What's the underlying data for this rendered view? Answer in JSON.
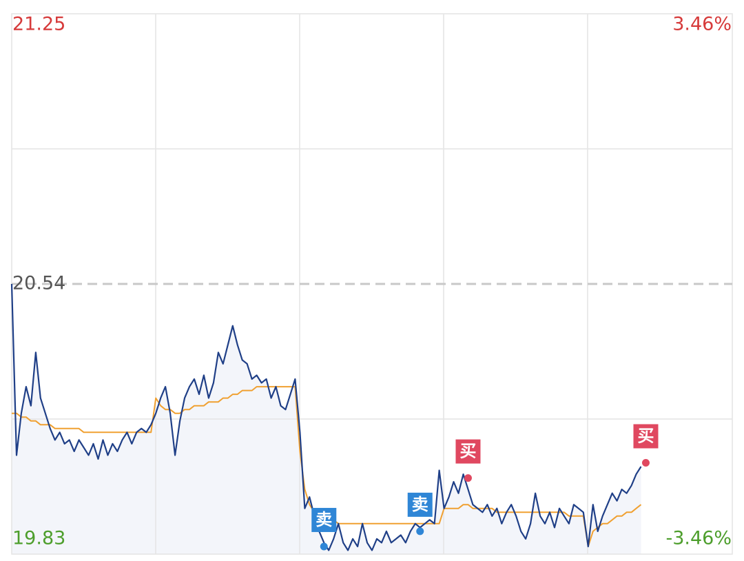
{
  "chart_data": {
    "type": "line",
    "xlim": [
      0,
      150
    ],
    "ylim": [
      19.83,
      21.25
    ],
    "yticks": [
      19.83,
      20.54,
      21.25
    ],
    "y2lim": [
      -3.46,
      3.46
    ],
    "y2ticks": [
      {
        "value": -3.46,
        "label": "-3.46%"
      },
      {
        "value": 3.46,
        "label": "3.46%"
      }
    ],
    "reference_line": 20.54,
    "grid": true,
    "up_color": "#d63a3a",
    "down_color": "#4d9e2c",
    "flat_color": "#555555",
    "series": [
      {
        "color": "#1f3f87",
        "fill": "#f3f5fa",
        "values": [
          20.54,
          20.09,
          20.2,
          20.27,
          20.22,
          20.36,
          20.24,
          20.2,
          20.16,
          20.13,
          20.15,
          20.12,
          20.13,
          20.1,
          20.13,
          20.11,
          20.09,
          20.12,
          20.08,
          20.13,
          20.09,
          20.12,
          20.1,
          20.13,
          20.15,
          20.12,
          20.15,
          20.16,
          20.15,
          20.17,
          20.2,
          20.24,
          20.27,
          20.2,
          20.09,
          20.18,
          20.24,
          20.27,
          20.29,
          20.25,
          20.3,
          20.24,
          20.28,
          20.36,
          20.33,
          20.38,
          20.43,
          20.38,
          20.34,
          20.33,
          20.29,
          20.3,
          20.28,
          20.29,
          20.24,
          20.27,
          20.22,
          20.21,
          20.25,
          20.29,
          20.15,
          19.95,
          19.98,
          19.93,
          19.89,
          19.86,
          19.84,
          19.87,
          19.91,
          19.86,
          19.84,
          19.87,
          19.85,
          19.91,
          19.86,
          19.84,
          19.87,
          19.86,
          19.89,
          19.86,
          19.87,
          19.88,
          19.86,
          19.89,
          19.91,
          19.9,
          19.91,
          19.92,
          19.91,
          20.05,
          19.95,
          19.98,
          20.02,
          19.99,
          20.04,
          20.0,
          19.96,
          19.95,
          19.94,
          19.96,
          19.93,
          19.95,
          19.91,
          19.94,
          19.96,
          19.93,
          19.89,
          19.87,
          19.91,
          19.99,
          19.93,
          19.91,
          19.94,
          19.9,
          19.95,
          19.93,
          19.91,
          19.96,
          19.95,
          19.94,
          19.85,
          19.96,
          19.89,
          19.93,
          19.96,
          19.99,
          19.97,
          20.0,
          19.99,
          20.01,
          20.04,
          20.06
        ]
      },
      {
        "color": "#f0a030",
        "values": [
          20.2,
          20.2,
          20.19,
          20.19,
          20.18,
          20.18,
          20.17,
          20.17,
          20.17,
          20.16,
          20.16,
          20.16,
          20.16,
          20.16,
          20.16,
          20.15,
          20.15,
          20.15,
          20.15,
          20.15,
          20.15,
          20.15,
          20.15,
          20.15,
          20.15,
          20.15,
          20.15,
          20.15,
          20.15,
          20.15,
          20.24,
          20.22,
          20.21,
          20.21,
          20.2,
          20.2,
          20.21,
          20.21,
          20.22,
          20.22,
          20.22,
          20.23,
          20.23,
          20.23,
          20.24,
          20.24,
          20.25,
          20.25,
          20.26,
          20.26,
          20.26,
          20.27,
          20.27,
          20.27,
          20.27,
          20.27,
          20.27,
          20.27,
          20.27,
          20.27,
          20.1,
          20.0,
          19.96,
          19.94,
          19.93,
          19.93,
          19.92,
          19.92,
          19.91,
          19.91,
          19.91,
          19.91,
          19.91,
          19.91,
          19.91,
          19.91,
          19.91,
          19.91,
          19.91,
          19.91,
          19.91,
          19.91,
          19.91,
          19.91,
          19.91,
          19.91,
          19.91,
          19.91,
          19.91,
          19.91,
          19.95,
          19.95,
          19.95,
          19.95,
          19.96,
          19.96,
          19.95,
          19.95,
          19.95,
          19.95,
          19.95,
          19.94,
          19.94,
          19.94,
          19.94,
          19.94,
          19.94,
          19.94,
          19.94,
          19.94,
          19.94,
          19.94,
          19.94,
          19.94,
          19.94,
          19.94,
          19.93,
          19.93,
          19.93,
          19.93,
          19.85,
          19.89,
          19.9,
          19.91,
          19.91,
          19.92,
          19.93,
          19.93,
          19.94,
          19.94,
          19.95,
          19.96
        ]
      }
    ],
    "markers": [
      {
        "label": "卖",
        "x": 65,
        "value": 19.85,
        "color": "#2f86d6"
      },
      {
        "label": "卖",
        "x": 85,
        "value": 19.89,
        "color": "#2f86d6"
      },
      {
        "label": "买",
        "x": 95,
        "value": 20.03,
        "color": "#e04860"
      },
      {
        "label": "买",
        "x": 132,
        "value": 20.07,
        "color": "#e04860"
      }
    ]
  }
}
